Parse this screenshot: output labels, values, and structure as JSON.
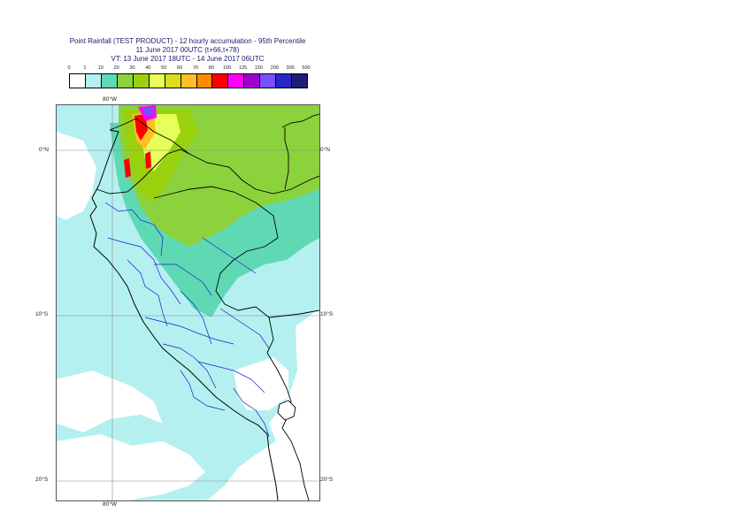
{
  "title": {
    "line1": "Point Rainfall (TEST PRODUCT) - 12 hourly accumulation - 95th Percentile",
    "line2": "11 June 2017 00UTC (t+66,t+78)",
    "line3": "VT: 13 June 2017 18UTC - 14 June 2017 06UTC"
  },
  "legend": {
    "thresholds": [
      "0",
      "1",
      "10",
      "20",
      "30",
      "40",
      "50",
      "60",
      "70",
      "80",
      "100",
      "125",
      "150",
      "200",
      "300",
      "500"
    ],
    "colors": [
      "#ffffff",
      "#b4f0f0",
      "#5fd9b4",
      "#8cd23c",
      "#9ad10e",
      "#e6ff5a",
      "#dcdc1e",
      "#ffbe23",
      "#ff8c00",
      "#ff0000",
      "#ff00ff",
      "#a000c8",
      "#7850ff",
      "#2828c8",
      "#1e1e78"
    ]
  },
  "map": {
    "lat_labels": [
      "0°N",
      "10°S",
      "20°S"
    ],
    "lon_labels": [
      "80°W",
      "80°W"
    ]
  }
}
